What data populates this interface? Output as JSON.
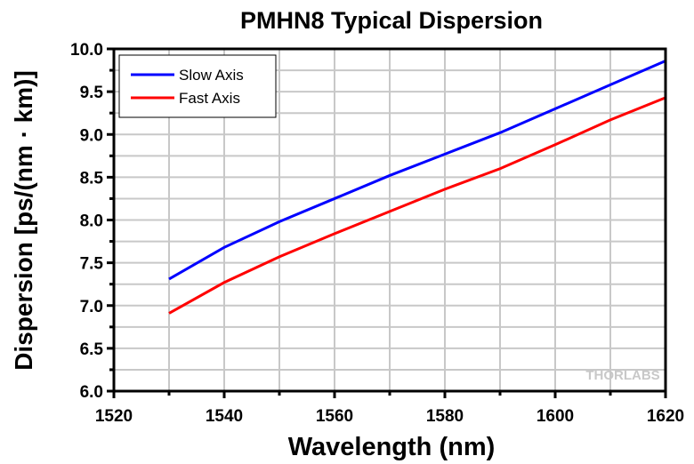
{
  "chart_data": {
    "type": "line",
    "title": "PMHN8 Typical Dispersion",
    "xlabel": "Wavelength (nm)",
    "ylabel": "Dispersion [ps/(nm · km)]",
    "xlim": [
      1520,
      1620
    ],
    "ylim": [
      6.0,
      10.0
    ],
    "xticks": [
      "1520",
      "1540",
      "1560",
      "1580",
      "1600",
      "1620"
    ],
    "yticks": [
      "6.0",
      "6.5",
      "7.0",
      "7.5",
      "8.0",
      "8.5",
      "9.0",
      "9.5",
      "10.0"
    ],
    "grid": true,
    "legend_position": "top-left",
    "x": [
      1530,
      1540,
      1550,
      1560,
      1570,
      1580,
      1590,
      1600,
      1610,
      1620
    ],
    "series": [
      {
        "name": "Slow Axis",
        "color": "#0000ff",
        "values": [
          7.31,
          7.68,
          7.98,
          8.25,
          8.52,
          8.77,
          9.02,
          9.3,
          9.58,
          9.86
        ]
      },
      {
        "name": "Fast Axis",
        "color": "#ff0000",
        "values": [
          6.91,
          7.27,
          7.57,
          7.84,
          8.1,
          8.36,
          8.6,
          8.88,
          9.17,
          9.43
        ]
      }
    ],
    "watermark": "THORLABS"
  }
}
